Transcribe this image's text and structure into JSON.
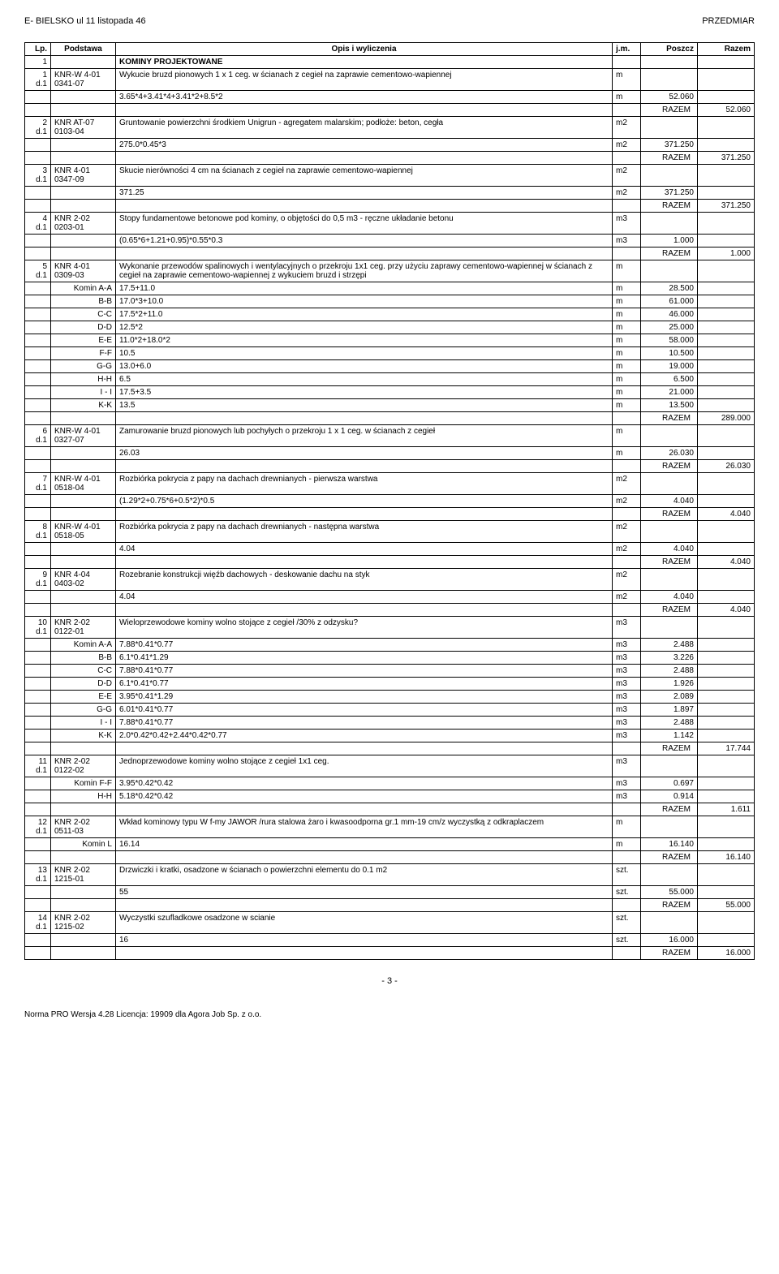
{
  "header": {
    "left": "E- BIELSKO ul 11 listopada 46",
    "right": "PRZEDMIAR"
  },
  "columns": [
    "Lp.",
    "Podstawa",
    "Opis i wyliczenia",
    "j.m.",
    "Poszcz",
    "Razem"
  ],
  "section": {
    "num": "1",
    "title": "KOMINY PROJEKTOWANE"
  },
  "rows": [
    {
      "lp": "1",
      "lp2": "d.1",
      "pod": "KNR-W 4-01",
      "pod2": "0341-07",
      "opis": "Wykucie bruzd pionowych 1 x 1 ceg. w ścianach z cegieł na zaprawie cementowo-wapiennej",
      "jm": "m",
      "calc": "3.65*4+3.41*4+3.41*2+8.5*2",
      "calc_jm": "m",
      "calc_val": "52.060",
      "razem_label": "RAZEM",
      "razem_val": "52.060"
    },
    {
      "lp": "2",
      "lp2": "d.1",
      "pod": "KNR AT-07",
      "pod2": "0103-04",
      "opis": "Gruntowanie powierzchni środkiem Unigrun - agregatem malarskim; podłoże: beton, cegła",
      "jm": "m2",
      "calc": "275.0*0.45*3",
      "calc_jm": "m2",
      "calc_val": "371.250",
      "razem_label": "RAZEM",
      "razem_val": "371.250"
    },
    {
      "lp": "3",
      "lp2": "d.1",
      "pod": "KNR 4-01",
      "pod2": "0347-09",
      "opis": "Skucie nierówności 4 cm na ścianach z cegieł na zaprawie cementowo-wapiennej",
      "jm": "m2",
      "calc": "371.25",
      "calc_jm": "m2",
      "calc_val": "371.250",
      "razem_label": "RAZEM",
      "razem_val": "371.250"
    },
    {
      "lp": "4",
      "lp2": "d.1",
      "pod": "KNR 2-02",
      "pod2": "0203-01",
      "opis": "Stopy fundamentowe betonowe pod kominy, o objętości do 0,5 m3 - ręczne układanie betonu",
      "jm": "m3",
      "calc": "(0.65*6+1.21+0.95)*0.55*0.3",
      "calc_jm": "m3",
      "calc_val": "1.000",
      "razem_label": "RAZEM",
      "razem_val": "1.000"
    },
    {
      "lp": "5",
      "lp2": "d.1",
      "pod": "KNR 4-01",
      "pod2": "0309-03",
      "opis": "Wykonanie przewodów spalinowych i wentylacyjnych o przekroju 1x1 ceg. przy użyciu zaprawy cementowo-wapiennej w ścianach z cegieł na zaprawie cementowo-wapiennej z wykuciem bruzd i strzępi",
      "jm": "m",
      "subs": [
        {
          "label": "Komin A-A",
          "calc": "17.5+11.0",
          "jm": "m",
          "val": "28.500"
        },
        {
          "label": "B-B",
          "calc": "17.0*3+10.0",
          "jm": "m",
          "val": "61.000"
        },
        {
          "label": "C-C",
          "calc": "17.5*2+11.0",
          "jm": "m",
          "val": "46.000"
        },
        {
          "label": "D-D",
          "calc": "12.5*2",
          "jm": "m",
          "val": "25.000"
        },
        {
          "label": "E-E",
          "calc": "11.0*2+18.0*2",
          "jm": "m",
          "val": "58.000"
        },
        {
          "label": "F-F",
          "calc": "10.5",
          "jm": "m",
          "val": "10.500"
        },
        {
          "label": "G-G",
          "calc": "13.0+6.0",
          "jm": "m",
          "val": "19.000"
        },
        {
          "label": "H-H",
          "calc": "6.5",
          "jm": "m",
          "val": "6.500"
        },
        {
          "label": "I - I",
          "calc": "17.5+3.5",
          "jm": "m",
          "val": "21.000"
        },
        {
          "label": "K-K",
          "calc": "13.5",
          "jm": "m",
          "val": "13.500"
        }
      ],
      "razem_label": "RAZEM",
      "razem_val": "289.000"
    },
    {
      "lp": "6",
      "lp2": "d.1",
      "pod": "KNR-W 4-01",
      "pod2": "0327-07",
      "opis": "Zamurowanie bruzd pionowych lub pochyłych o przekroju 1 x 1 ceg. w ścianach z cegieł",
      "jm": "m",
      "calc": "26.03",
      "calc_jm": "m",
      "calc_val": "26.030",
      "razem_label": "RAZEM",
      "razem_val": "26.030"
    },
    {
      "lp": "7",
      "lp2": "d.1",
      "pod": "KNR-W 4-01",
      "pod2": "0518-04",
      "opis": "Rozbiórka pokrycia z papy na dachach drewnianych - pierwsza warstwa",
      "jm": "m2",
      "calc": "(1.29*2+0.75*6+0.5*2)*0.5",
      "calc_jm": "m2",
      "calc_val": "4.040",
      "razem_label": "RAZEM",
      "razem_val": "4.040"
    },
    {
      "lp": "8",
      "lp2": "d.1",
      "pod": "KNR-W 4-01",
      "pod2": "0518-05",
      "opis": "Rozbiórka pokrycia z papy na dachach drewnianych - następna warstwa",
      "jm": "m2",
      "calc": "4.04",
      "calc_jm": "m2",
      "calc_val": "4.040",
      "razem_label": "RAZEM",
      "razem_val": "4.040"
    },
    {
      "lp": "9",
      "lp2": "d.1",
      "pod": "KNR 4-04",
      "pod2": "0403-02",
      "opis": "Rozebranie konstrukcji więźb dachowych - deskowanie dachu na styk",
      "jm": "m2",
      "calc": "4.04",
      "calc_jm": "m2",
      "calc_val": "4.040",
      "razem_label": "RAZEM",
      "razem_val": "4.040"
    },
    {
      "lp": "10",
      "lp2": "d.1",
      "pod": "KNR 2-02",
      "pod2": "0122-01",
      "opis": "Wieloprzewodowe kominy wolno stojące z cegieł /30% z odzysku?",
      "jm": "m3",
      "subs": [
        {
          "label": "Komin A-A",
          "calc": "7.88*0.41*0.77",
          "jm": "m3",
          "val": "2.488"
        },
        {
          "label": "B-B",
          "calc": "6.1*0.41*1.29",
          "jm": "m3",
          "val": "3.226"
        },
        {
          "label": "C-C",
          "calc": "7.88*0.41*0.77",
          "jm": "m3",
          "val": "2.488"
        },
        {
          "label": "D-D",
          "calc": "6.1*0.41*0.77",
          "jm": "m3",
          "val": "1.926"
        },
        {
          "label": "E-E",
          "calc": "3.95*0.41*1.29",
          "jm": "m3",
          "val": "2.089"
        },
        {
          "label": "G-G",
          "calc": "6.01*0.41*0.77",
          "jm": "m3",
          "val": "1.897"
        },
        {
          "label": "I - I",
          "calc": "7.88*0.41*0.77",
          "jm": "m3",
          "val": "2.488"
        },
        {
          "label": "K-K",
          "calc": "2.0*0.42*0.42+2.44*0.42*0.77",
          "jm": "m3",
          "val": "1.142"
        }
      ],
      "razem_label": "RAZEM",
      "razem_val": "17.744"
    },
    {
      "lp": "11",
      "lp2": "d.1",
      "pod": "KNR 2-02",
      "pod2": "0122-02",
      "opis": "Jednoprzewodowe kominy wolno stojące z cegieł 1x1 ceg.",
      "jm": "m3",
      "subs": [
        {
          "label": "Komin F-F",
          "calc": "3.95*0.42*0.42",
          "jm": "m3",
          "val": "0.697"
        },
        {
          "label": "H-H",
          "calc": "5.18*0.42*0.42",
          "jm": "m3",
          "val": "0.914"
        }
      ],
      "razem_label": "RAZEM",
      "razem_val": "1.611"
    },
    {
      "lp": "12",
      "lp2": "d.1",
      "pod": "KNR 2-02",
      "pod2": "0511-03",
      "opis": "Wkład kominowy typu W f-my JAWOR /rura stalowa żaro i kwasoodporna gr.1 mm-19 cm/z wyczystką z odkraplaczem",
      "jm": "m",
      "subs": [
        {
          "label": "Komin L",
          "calc": "16.14",
          "jm": "m",
          "val": "16.140"
        }
      ],
      "razem_label": "RAZEM",
      "razem_val": "16.140"
    },
    {
      "lp": "13",
      "lp2": "d.1",
      "pod": "KNR 2-02",
      "pod2": "1215-01",
      "opis": "Drzwiczki i kratki, osadzone w ścianach o powierzchni elementu do 0.1 m2",
      "jm": "szt.",
      "calc": "55",
      "calc_jm": "szt.",
      "calc_val": "55.000",
      "razem_label": "RAZEM",
      "razem_val": "55.000"
    },
    {
      "lp": "14",
      "lp2": "d.1",
      "pod": "KNR 2-02",
      "pod2": "1215-02",
      "opis": "Wyczystki szufladkowe osadzone w scianie",
      "jm": "szt.",
      "calc": "16",
      "calc_jm": "szt.",
      "calc_val": "16.000",
      "razem_label": "RAZEM",
      "razem_val": "16.000"
    }
  ],
  "page_num": "- 3 -",
  "footer": "Norma PRO Wersja 4.28 Licencja: 19909 dla Agora Job Sp. z o.o."
}
